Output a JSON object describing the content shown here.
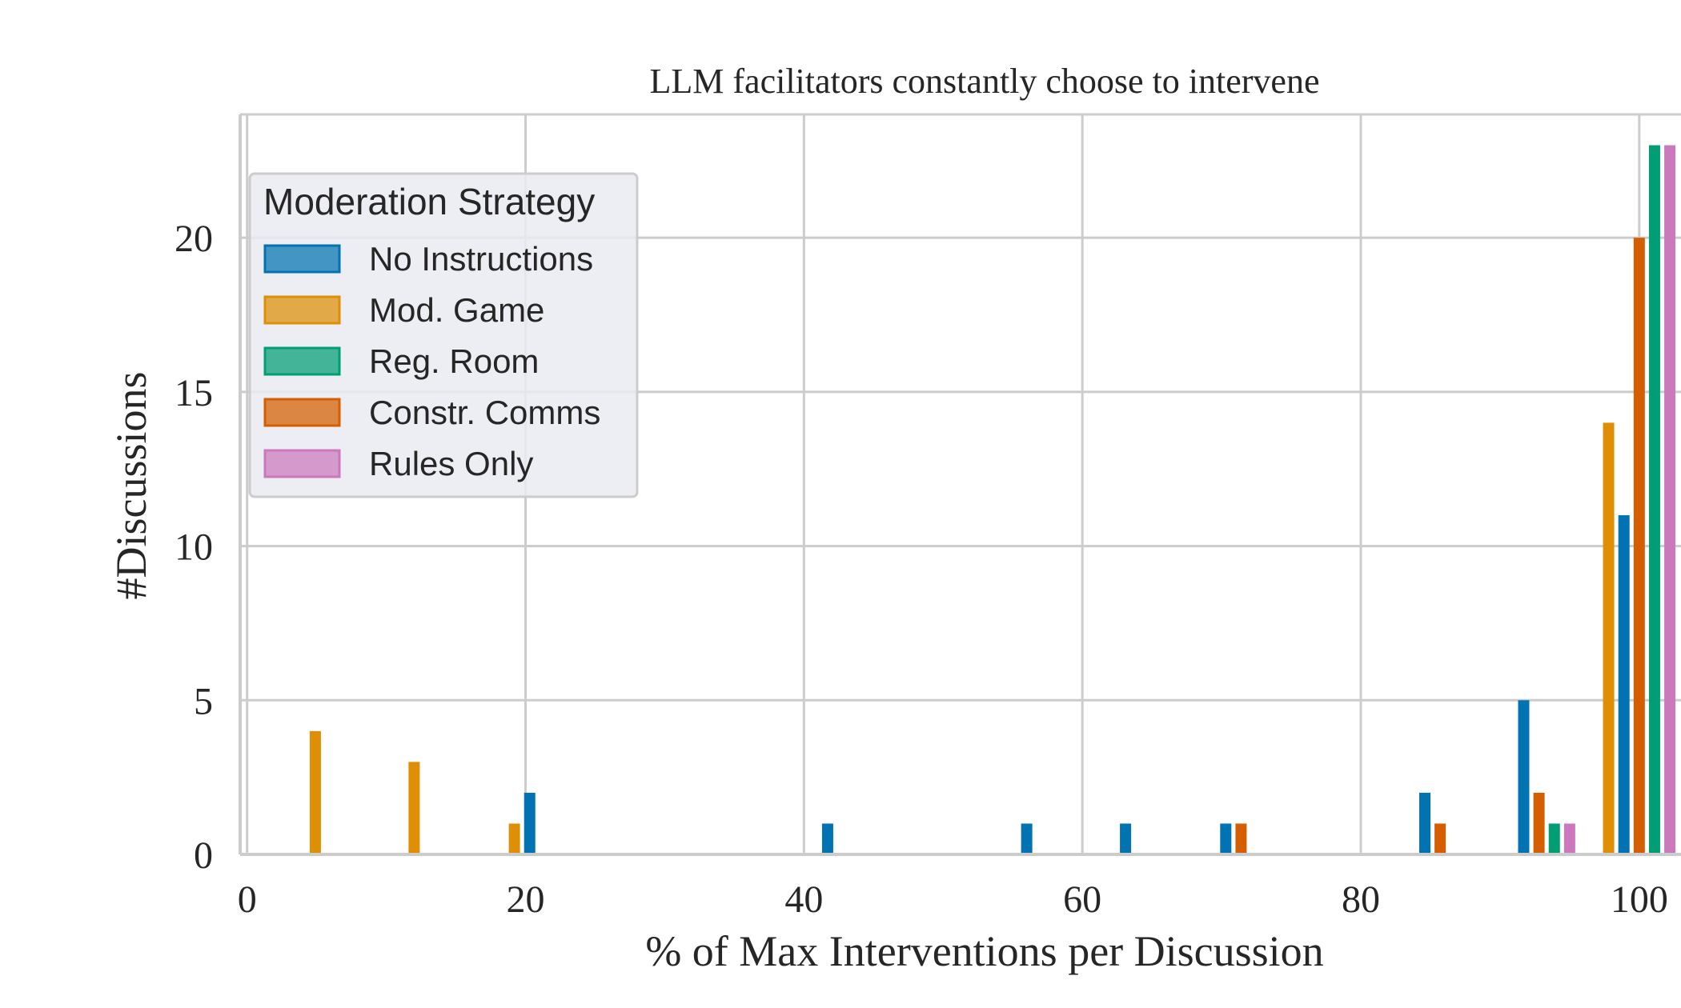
{
  "chart_data": {
    "type": "bar",
    "title": "LLM facilitators constantly choose to intervene",
    "xlabel": "% of Max Interventions per Discussion",
    "ylabel": "#Discussions",
    "xlim": [
      -0.5,
      103
    ],
    "ylim": [
      0,
      24
    ],
    "xticks": [
      "0",
      "20",
      "40",
      "60",
      "80",
      "100"
    ],
    "xtick_values": [
      0,
      20,
      40,
      60,
      80,
      100
    ],
    "yticks": [
      "0",
      "5",
      "10",
      "15",
      "20"
    ],
    "ytick_values": [
      0,
      5,
      10,
      15,
      20
    ],
    "grid": true,
    "legend": {
      "title": "Moderation Strategy",
      "placement": "upper-left"
    },
    "series": [
      {
        "name": "No Instructions",
        "color": "#0173b2",
        "points": [
          {
            "x": 20.3,
            "y": 2
          },
          {
            "x": 41.7,
            "y": 1
          },
          {
            "x": 56,
            "y": 1
          },
          {
            "x": 63.1,
            "y": 1
          },
          {
            "x": 70.3,
            "y": 1
          },
          {
            "x": 84.6,
            "y": 2
          },
          {
            "x": 91.7,
            "y": 5
          },
          {
            "x": 98.9,
            "y": 11
          }
        ]
      },
      {
        "name": "Mod. Game",
        "color": "#de8f05",
        "points": [
          {
            "x": 4.9,
            "y": 4
          },
          {
            "x": 12,
            "y": 3
          },
          {
            "x": 19.2,
            "y": 1
          },
          {
            "x": 97.8,
            "y": 14
          }
        ]
      },
      {
        "name": "Reg. Room",
        "color": "#029e73",
        "points": [
          {
            "x": 93.9,
            "y": 1
          },
          {
            "x": 101.1,
            "y": 23
          }
        ]
      },
      {
        "name": "Constr. Comms",
        "color": "#d55e00",
        "points": [
          {
            "x": 71.4,
            "y": 1
          },
          {
            "x": 85.7,
            "y": 1
          },
          {
            "x": 92.8,
            "y": 2
          },
          {
            "x": 100,
            "y": 20
          }
        ]
      },
      {
        "name": "Rules Only",
        "color": "#cc78bc",
        "points": [
          {
            "x": 95,
            "y": 1
          },
          {
            "x": 102.2,
            "y": 23
          }
        ]
      }
    ]
  }
}
